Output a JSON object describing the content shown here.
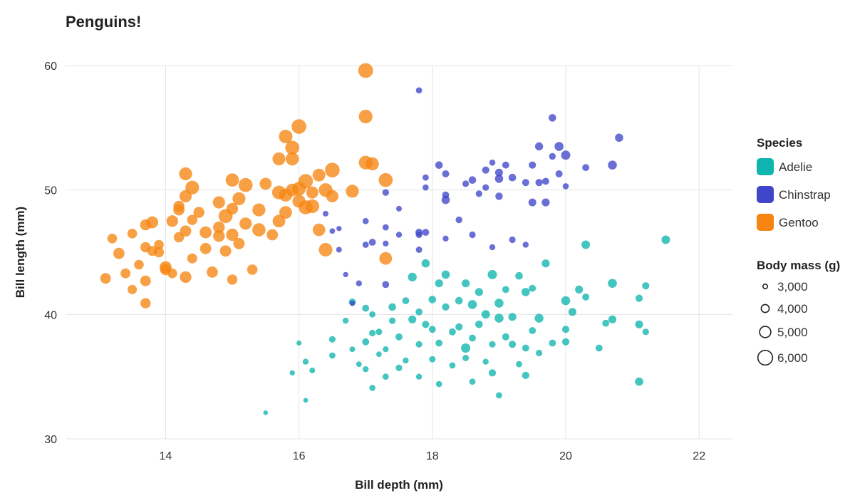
{
  "chart_data": {
    "type": "scatter",
    "title": "Penguins!",
    "xlabel": "Bill depth (mm)",
    "ylabel": "Bill length (mm)",
    "xlim": [
      12.5,
      22.5
    ],
    "ylim": [
      30,
      60
    ],
    "x_ticks": [
      "14",
      "16",
      "18",
      "20",
      "22"
    ],
    "y_ticks": [
      "30",
      "40",
      "50",
      "60"
    ],
    "grid": true,
    "legend": {
      "placement": "right",
      "color_title": "Species",
      "size_title": "Body mass (g)",
      "size_entries": [
        {
          "label": "3,000",
          "value": 3000
        },
        {
          "label": "4,000",
          "value": 4000
        },
        {
          "label": "5,000",
          "value": 5000
        },
        {
          "label": "6,000",
          "value": 6000
        }
      ]
    },
    "series": [
      {
        "name": "Adelie",
        "color": "#0fb5ae",
        "points": [
          [
            15.5,
            32.1,
            3050
          ],
          [
            16.1,
            33.1,
            3100
          ],
          [
            15.9,
            35.3,
            3200
          ],
          [
            16.0,
            37.7,
            3150
          ],
          [
            16.1,
            36.2,
            3400
          ],
          [
            16.2,
            35.5,
            3350
          ],
          [
            16.5,
            38.0,
            3600
          ],
          [
            16.5,
            36.7,
            3500
          ],
          [
            16.7,
            39.5,
            3400
          ],
          [
            16.8,
            37.2,
            3350
          ],
          [
            16.8,
            41.0,
            3700
          ],
          [
            16.9,
            36.0,
            3300
          ],
          [
            17.0,
            40.5,
            3700
          ],
          [
            17.0,
            35.6,
            3400
          ],
          [
            17.0,
            37.8,
            3700
          ],
          [
            17.1,
            34.1,
            3450
          ],
          [
            17.1,
            38.5,
            3600
          ],
          [
            17.1,
            40.0,
            3500
          ],
          [
            17.2,
            36.8,
            3300
          ],
          [
            17.2,
            38.6,
            3550
          ],
          [
            17.3,
            35.0,
            3500
          ],
          [
            17.3,
            37.2,
            3400
          ],
          [
            17.4,
            39.5,
            3600
          ],
          [
            17.4,
            40.6,
            3900
          ],
          [
            17.5,
            35.7,
            3600
          ],
          [
            17.5,
            38.2,
            3700
          ],
          [
            17.6,
            41.1,
            3700
          ],
          [
            17.6,
            36.3,
            3400
          ],
          [
            17.7,
            39.6,
            4000
          ],
          [
            17.7,
            43.0,
            4250
          ],
          [
            17.8,
            37.6,
            3600
          ],
          [
            17.8,
            40.2,
            3700
          ],
          [
            17.8,
            35.0,
            3400
          ],
          [
            17.9,
            44.1,
            4100
          ],
          [
            17.9,
            39.2,
            3800
          ],
          [
            18.0,
            41.2,
            3900
          ],
          [
            18.0,
            36.4,
            3550
          ],
          [
            18.0,
            38.8,
            3700
          ],
          [
            18.1,
            34.4,
            3450
          ],
          [
            18.1,
            42.5,
            4000
          ],
          [
            18.1,
            37.7,
            3700
          ],
          [
            18.2,
            40.6,
            3800
          ],
          [
            18.2,
            43.2,
            4100
          ],
          [
            18.3,
            38.6,
            3700
          ],
          [
            18.3,
            35.9,
            3500
          ],
          [
            18.4,
            41.1,
            3900
          ],
          [
            18.4,
            39.0,
            3800
          ],
          [
            18.5,
            36.5,
            3550
          ],
          [
            18.5,
            42.5,
            4000
          ],
          [
            18.5,
            37.3,
            4400
          ],
          [
            18.6,
            40.8,
            4300
          ],
          [
            18.6,
            34.6,
            3500
          ],
          [
            18.6,
            38.1,
            3700
          ],
          [
            18.7,
            39.2,
            3900
          ],
          [
            18.7,
            41.8,
            4000
          ],
          [
            18.8,
            36.2,
            3400
          ],
          [
            18.8,
            40.0,
            4200
          ],
          [
            18.9,
            37.6,
            3600
          ],
          [
            18.9,
            43.2,
            4400
          ],
          [
            18.9,
            35.3,
            3800
          ],
          [
            19.0,
            39.7,
            4300
          ],
          [
            19.0,
            33.5,
            3500
          ],
          [
            19.0,
            40.9,
            4300
          ],
          [
            19.1,
            38.2,
            3750
          ],
          [
            19.1,
            42.0,
            3700
          ],
          [
            19.2,
            37.6,
            3800
          ],
          [
            19.2,
            39.8,
            4000
          ],
          [
            19.3,
            36.0,
            3500
          ],
          [
            19.3,
            43.1,
            3900
          ],
          [
            19.4,
            37.3,
            3700
          ],
          [
            19.4,
            41.8,
            4100
          ],
          [
            19.4,
            35.1,
            3800
          ],
          [
            19.5,
            38.7,
            3700
          ],
          [
            19.5,
            42.1,
            3700
          ],
          [
            19.6,
            36.9,
            3600
          ],
          [
            19.6,
            39.7,
            4250
          ],
          [
            19.7,
            44.1,
            4000
          ],
          [
            19.8,
            37.7,
            3700
          ],
          [
            20.0,
            41.1,
            4300
          ],
          [
            20.0,
            38.8,
            3800
          ],
          [
            20.0,
            37.8,
            3800
          ],
          [
            20.1,
            40.2,
            4000
          ],
          [
            20.2,
            42.0,
            4000
          ],
          [
            20.3,
            41.4,
            3700
          ],
          [
            20.3,
            45.6,
            4200
          ],
          [
            20.5,
            37.3,
            3700
          ],
          [
            20.6,
            39.3,
            3700
          ],
          [
            20.7,
            42.5,
            4300
          ],
          [
            20.7,
            39.6,
            4000
          ],
          [
            21.1,
            41.3,
            3800
          ],
          [
            21.1,
            39.2,
            4000
          ],
          [
            21.1,
            34.6,
            4100
          ],
          [
            21.2,
            38.6,
            3600
          ],
          [
            21.2,
            42.3,
            3800
          ],
          [
            21.5,
            46.0,
            4200
          ]
        ]
      },
      {
        "name": "Chinstrap",
        "color": "#4046ca",
        "points": [
          [
            16.4,
            48.1,
            3350
          ],
          [
            16.5,
            46.7,
            3300
          ],
          [
            16.6,
            45.2,
            3350
          ],
          [
            16.6,
            46.9,
            3200
          ],
          [
            16.7,
            43.2,
            3200
          ],
          [
            16.8,
            40.9,
            3300
          ],
          [
            16.9,
            42.5,
            3400
          ],
          [
            17.0,
            47.5,
            3500
          ],
          [
            17.0,
            45.6,
            3500
          ],
          [
            17.1,
            45.8,
            3700
          ],
          [
            17.3,
            47.0,
            3500
          ],
          [
            17.3,
            49.8,
            3650
          ],
          [
            17.3,
            45.7,
            3400
          ],
          [
            17.3,
            42.4,
            3700
          ],
          [
            17.5,
            46.4,
            3400
          ],
          [
            17.5,
            48.5,
            3350
          ],
          [
            17.8,
            58.0,
            3500
          ],
          [
            17.8,
            46.6,
            3800
          ],
          [
            17.8,
            45.2,
            3550
          ],
          [
            17.8,
            46.4,
            3600
          ],
          [
            17.9,
            46.6,
            3700
          ],
          [
            17.9,
            51.0,
            3500
          ],
          [
            17.9,
            50.2,
            3450
          ],
          [
            18.1,
            52.0,
            3900
          ],
          [
            18.2,
            46.1,
            3400
          ],
          [
            18.2,
            49.2,
            4100
          ],
          [
            18.2,
            49.6,
            3700
          ],
          [
            18.2,
            51.3,
            3750
          ],
          [
            18.4,
            47.6,
            3650
          ],
          [
            18.5,
            50.5,
            3600
          ],
          [
            18.6,
            50.8,
            3900
          ],
          [
            18.6,
            46.4,
            3600
          ],
          [
            18.7,
            49.7,
            3600
          ],
          [
            18.8,
            50.2,
            3600
          ],
          [
            18.8,
            51.6,
            3800
          ],
          [
            18.9,
            52.2,
            3450
          ],
          [
            18.9,
            45.4,
            3400
          ],
          [
            19.0,
            50.9,
            4100
          ],
          [
            19.0,
            49.5,
            3850
          ],
          [
            19.0,
            51.4,
            3950
          ],
          [
            19.1,
            52.0,
            3700
          ],
          [
            19.2,
            51.0,
            3900
          ],
          [
            19.2,
            46.0,
            3600
          ],
          [
            19.4,
            50.6,
            3750
          ],
          [
            19.4,
            45.6,
            3400
          ],
          [
            19.5,
            52.0,
            3800
          ],
          [
            19.5,
            49.0,
            3950
          ],
          [
            19.6,
            50.6,
            3800
          ],
          [
            19.6,
            53.5,
            4050
          ],
          [
            19.7,
            50.7,
            3700
          ],
          [
            19.7,
            49.0,
            4000
          ],
          [
            19.8,
            55.8,
            3900
          ],
          [
            19.8,
            52.7,
            3650
          ],
          [
            19.9,
            51.3,
            3750
          ],
          [
            19.9,
            53.5,
            4300
          ],
          [
            20.0,
            52.8,
            4400
          ],
          [
            20.0,
            50.3,
            3450
          ],
          [
            20.3,
            51.8,
            3700
          ],
          [
            20.7,
            52.0,
            4300
          ],
          [
            20.8,
            54.2,
            4100
          ]
        ]
      },
      {
        "name": "Gentoo",
        "color": "#f68511",
        "points": [
          [
            13.1,
            42.9,
            4800
          ],
          [
            13.2,
            46.1,
            4500
          ],
          [
            13.3,
            44.9,
            5000
          ],
          [
            13.4,
            43.3,
            4600
          ],
          [
            13.5,
            46.5,
            4500
          ],
          [
            13.5,
            42.0,
            4400
          ],
          [
            13.6,
            44.0,
            4500
          ],
          [
            13.7,
            47.2,
            4900
          ],
          [
            13.7,
            45.4,
            4700
          ],
          [
            13.7,
            40.9,
            4700
          ],
          [
            13.7,
            42.7,
            4800
          ],
          [
            13.8,
            45.1,
            4600
          ],
          [
            13.8,
            47.4,
            5200
          ],
          [
            13.9,
            45.0,
            4700
          ],
          [
            13.9,
            45.6,
            4500
          ],
          [
            14.0,
            43.8,
            5200
          ],
          [
            14.0,
            43.6,
            4900
          ],
          [
            14.1,
            47.5,
            5100
          ],
          [
            14.1,
            43.3,
            4500
          ],
          [
            14.2,
            48.4,
            5000
          ],
          [
            14.2,
            46.2,
            4700
          ],
          [
            14.2,
            48.7,
            4900
          ],
          [
            14.3,
            51.3,
            5500
          ],
          [
            14.3,
            46.7,
            5000
          ],
          [
            14.3,
            43.0,
            5100
          ],
          [
            14.4,
            44.5,
            4600
          ],
          [
            14.4,
            47.6,
            4700
          ],
          [
            14.4,
            50.2,
            5700
          ],
          [
            14.5,
            48.2,
            4900
          ],
          [
            14.6,
            46.6,
            5200
          ],
          [
            14.6,
            45.3,
            5000
          ],
          [
            14.7,
            43.4,
            5000
          ],
          [
            14.8,
            47.0,
            5100
          ],
          [
            14.8,
            46.3,
            5100
          ],
          [
            14.8,
            49.0,
            5300
          ],
          [
            14.9,
            45.1,
            5000
          ],
          [
            14.9,
            47.9,
            5800
          ],
          [
            15.0,
            42.8,
            4700
          ],
          [
            15.0,
            48.5,
            5100
          ],
          [
            15.0,
            50.8,
            5600
          ],
          [
            15.0,
            46.4,
            5300
          ],
          [
            15.1,
            49.3,
            5500
          ],
          [
            15.1,
            45.7,
            5000
          ],
          [
            15.2,
            47.3,
            5300
          ],
          [
            15.2,
            50.4,
            5800
          ],
          [
            15.3,
            43.6,
            4750
          ],
          [
            15.4,
            46.8,
            5600
          ],
          [
            15.4,
            48.4,
            5500
          ],
          [
            15.5,
            50.5,
            5200
          ],
          [
            15.6,
            46.4,
            5000
          ],
          [
            15.7,
            49.8,
            5700
          ],
          [
            15.7,
            47.5,
            5400
          ],
          [
            15.8,
            48.2,
            5400
          ],
          [
            15.8,
            49.6,
            5550
          ],
          [
            15.9,
            50.0,
            5400
          ],
          [
            15.9,
            52.5,
            5550
          ],
          [
            16.0,
            50.1,
            5700
          ],
          [
            16.0,
            49.1,
            5500
          ],
          [
            16.1,
            48.6,
            5800
          ],
          [
            16.1,
            50.7,
            5950
          ],
          [
            16.2,
            49.8,
            5250
          ],
          [
            16.2,
            48.7,
            5750
          ],
          [
            16.3,
            46.8,
            5350
          ],
          [
            16.3,
            51.2,
            5450
          ],
          [
            16.4,
            50.0,
            5700
          ],
          [
            16.4,
            45.2,
            5650
          ],
          [
            16.5,
            49.5,
            5300
          ],
          [
            16.5,
            51.6,
            6000
          ],
          [
            16.8,
            49.9,
            5500
          ],
          [
            17.0,
            52.2,
            5700
          ],
          [
            17.0,
            55.9,
            5700
          ],
          [
            17.0,
            59.6,
            6050
          ],
          [
            17.1,
            52.1,
            5550
          ],
          [
            17.3,
            50.8,
            5800
          ],
          [
            17.3,
            44.5,
            5400
          ],
          [
            15.8,
            54.3,
            5650
          ],
          [
            15.9,
            53.4,
            5800
          ],
          [
            16.0,
            55.1,
            6000
          ],
          [
            15.7,
            52.5,
            5500
          ],
          [
            14.3,
            49.5,
            5300
          ]
        ]
      }
    ]
  }
}
